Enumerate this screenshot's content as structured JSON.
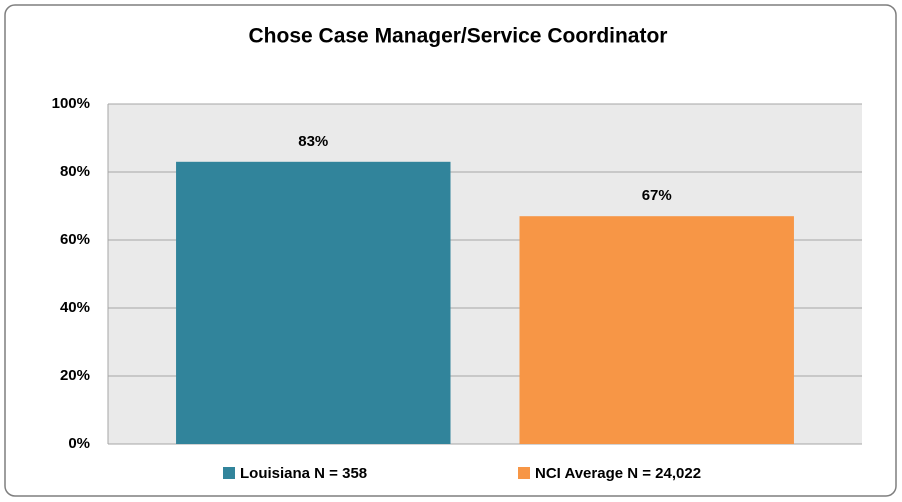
{
  "chart_data": {
    "type": "bar",
    "title": "Chose Case Manager/Service Coordinator",
    "categories": [
      null
    ],
    "series": [
      {
        "name": "Louisiana N = 358",
        "color": "#31849b",
        "values": [
          83
        ],
        "value_labels": [
          "83%"
        ]
      },
      {
        "name": "NCI Average N = 24,022",
        "color": "#f79646",
        "values": [
          67
        ],
        "value_labels": [
          "67%"
        ]
      }
    ],
    "ylim": [
      0,
      100
    ],
    "yticks": [
      {
        "value": 0,
        "label": "0%"
      },
      {
        "value": 20,
        "label": "20%"
      },
      {
        "value": 40,
        "label": "40%"
      },
      {
        "value": 60,
        "label": "60%"
      },
      {
        "value": 80,
        "label": "80%"
      },
      {
        "value": 100,
        "label": "100%"
      }
    ],
    "grid": true,
    "legend": "bottom"
  }
}
